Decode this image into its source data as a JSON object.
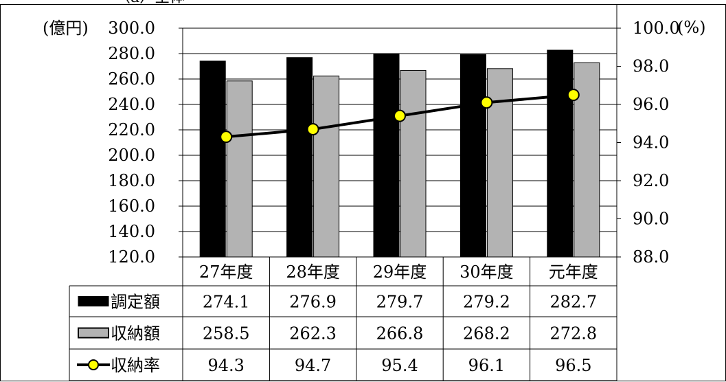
{
  "header_fragment": "（a）全体",
  "chart_data": {
    "type": "bar",
    "title": "",
    "categories": [
      "27年度",
      "28年度",
      "29年度",
      "30年度",
      "元年度"
    ],
    "series": [
      {
        "name": "調定額",
        "type": "bar",
        "axis": "left",
        "color": "#000000",
        "values": [
          274.1,
          276.9,
          279.7,
          279.2,
          282.7
        ]
      },
      {
        "name": "収納額",
        "type": "bar",
        "axis": "left",
        "color": "#b3b3b3",
        "values": [
          258.5,
          262.3,
          266.8,
          268.2,
          272.8
        ]
      },
      {
        "name": "収納率",
        "type": "line",
        "axis": "right",
        "color": "#000000",
        "marker_color": "#ffff00",
        "values": [
          94.3,
          94.7,
          95.4,
          96.1,
          96.5
        ]
      }
    ],
    "left_axis": {
      "unit": "(億円)",
      "min": 120,
      "max": 300,
      "step": 20,
      "tick_labels": [
        "300.0",
        "280.0",
        "260.0",
        "240.0",
        "220.0",
        "200.0",
        "180.0",
        "160.0",
        "140.0",
        "120.0"
      ]
    },
    "right_axis": {
      "unit": "(%)",
      "min": 88,
      "max": 100,
      "step": 2,
      "tick_labels": [
        "100.0",
        "98.0",
        "96.0",
        "94.0",
        "92.0",
        "90.0",
        "88.0"
      ]
    },
    "grid": true,
    "data_table": {
      "rows": [
        {
          "label": "調定額",
          "values": [
            "274.1",
            "276.9",
            "279.7",
            "279.2",
            "282.7"
          ]
        },
        {
          "label": "収納額",
          "values": [
            "258.5",
            "262.3",
            "266.8",
            "268.2",
            "272.8"
          ]
        },
        {
          "label": "収納率",
          "values": [
            "94.3",
            "94.7",
            "95.4",
            "96.1",
            "96.5"
          ]
        }
      ]
    }
  }
}
